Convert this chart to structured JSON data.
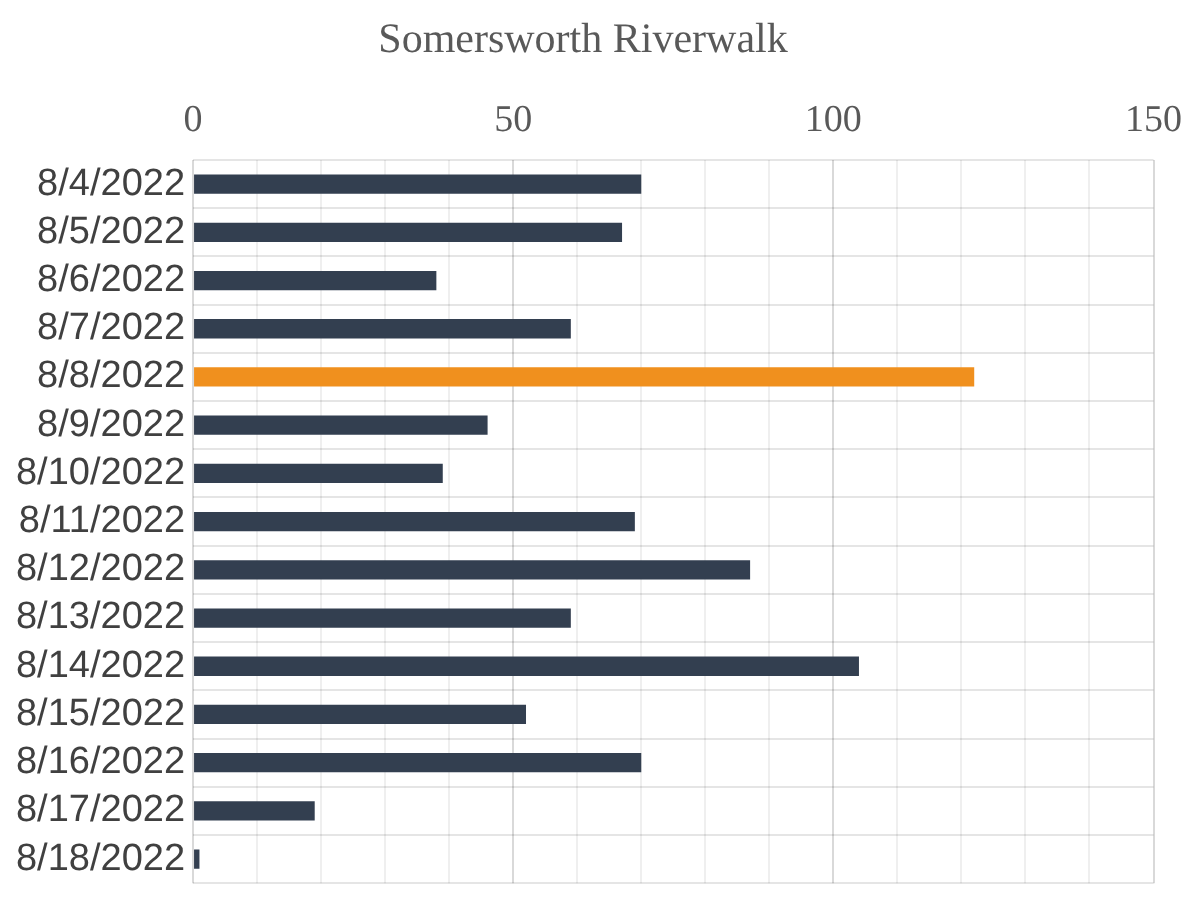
{
  "chart_data": {
    "type": "bar",
    "orientation": "horizontal",
    "title": "Somersworth Riverwalk",
    "categories": [
      "8/4/2022",
      "8/5/2022",
      "8/6/2022",
      "8/7/2022",
      "8/8/2022",
      "8/9/2022",
      "8/10/2022",
      "8/11/2022",
      "8/12/2022",
      "8/13/2022",
      "8/14/2022",
      "8/15/2022",
      "8/16/2022",
      "8/17/2022",
      "8/18/2022"
    ],
    "values": [
      70,
      67,
      38,
      59,
      122,
      46,
      39,
      69,
      87,
      59,
      104,
      52,
      70,
      19,
      1
    ],
    "colors": [
      "#333f50",
      "#333f50",
      "#333f50",
      "#333f50",
      "#f0901e",
      "#333f50",
      "#333f50",
      "#333f50",
      "#333f50",
      "#333f50",
      "#333f50",
      "#333f50",
      "#333f50",
      "#333f50",
      "#333f50"
    ],
    "xlim": [
      0,
      150
    ],
    "xticks": [
      0,
      {
        "value": 10,
        "label": null
      },
      {
        "value": 20,
        "label": null
      },
      {
        "value": 30,
        "label": null
      },
      {
        "value": 40,
        "label": null
      },
      50,
      {
        "value": 60,
        "label": null
      },
      {
        "value": 70,
        "label": null
      },
      {
        "value": 80,
        "label": null
      },
      {
        "value": 90,
        "label": null
      },
      100,
      {
        "value": 110,
        "label": null
      },
      {
        "value": 120,
        "label": null
      },
      {
        "value": 130,
        "label": null
      },
      {
        "value": 140,
        "label": null
      },
      150
    ],
    "grid": true,
    "legend": false
  }
}
